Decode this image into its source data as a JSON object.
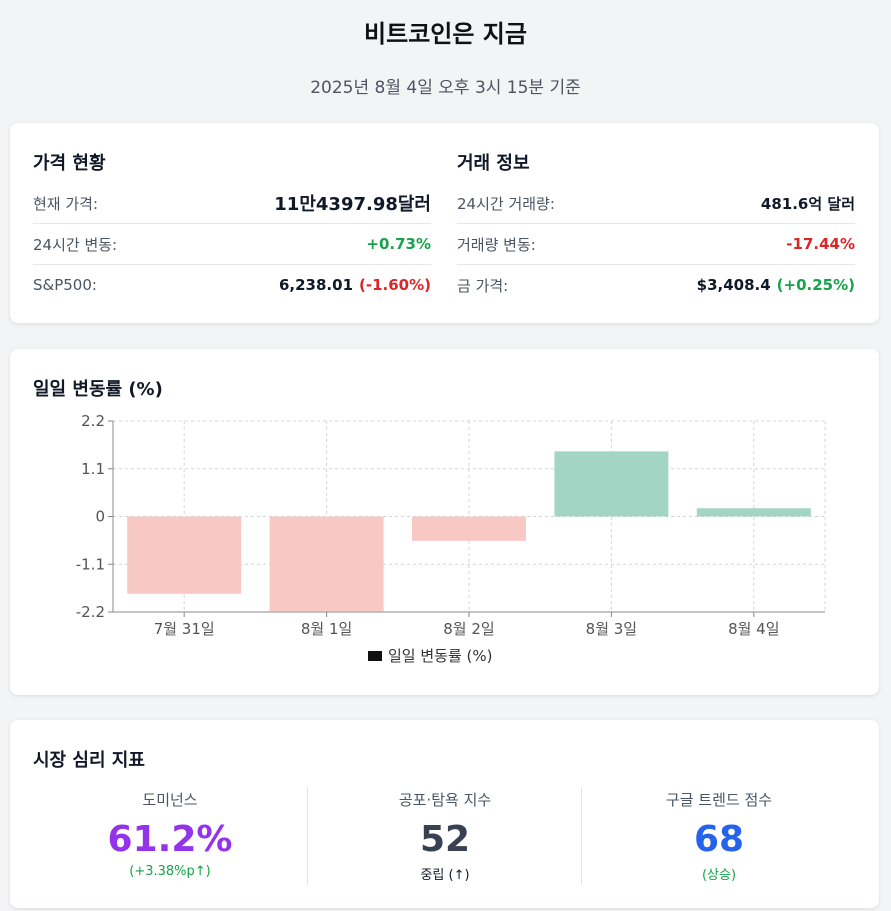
{
  "header": {
    "title": "비트코인은 지금",
    "subtitle": "2025년 8월 4일 오후 3시 15분 기준"
  },
  "price_section": {
    "title": "가격 현황",
    "current_price_label": "현재 가격:",
    "current_price_value": "11만4397.98달러",
    "change_24h_label": "24시간 변동:",
    "change_24h_value": "+0.73%",
    "sp500_label": "S&P500:",
    "sp500_value": "6,238.01",
    "sp500_change": "(-1.60%)"
  },
  "trade_section": {
    "title": "거래 정보",
    "volume_label": "24시간 거래량:",
    "volume_value": "481.6억 달러",
    "volume_change_label": "거래량 변동:",
    "volume_change_value": "-17.44%",
    "gold_label": "금 가격:",
    "gold_value": "$3,408.4",
    "gold_change": "(+0.25%)"
  },
  "chart_section": {
    "title": "일일 변동률 (%)"
  },
  "chart_data": {
    "type": "bar",
    "categories": [
      "7월 31일",
      "8월 1일",
      "8월 2일",
      "8월 3일",
      "8월 4일"
    ],
    "series": [
      {
        "name": "일일 변동률 (%)",
        "values": [
          -1.78,
          -2.18,
          -0.56,
          1.5,
          0.19
        ]
      }
    ],
    "yticks": [
      "2.2",
      "1.1",
      "0",
      "-1.1",
      "-2.2"
    ],
    "ylim": [
      -2.2,
      2.2
    ],
    "grid": true,
    "legend": "bottom",
    "colors": {
      "positive": "#a3d5c4",
      "negative": "#f8c8c4"
    }
  },
  "sentiment_section": {
    "title": "시장 심리 지표",
    "dominance": {
      "label": "도미넌스",
      "value": "61.2%",
      "sub": "(+3.38%p↑)"
    },
    "fear_greed": {
      "label": "공포·탐욕 지수",
      "value": "52",
      "sub": "중립 (↑)"
    },
    "google_trends": {
      "label": "구글 트렌드 점수",
      "value": "68",
      "sub": "(상승)"
    }
  }
}
